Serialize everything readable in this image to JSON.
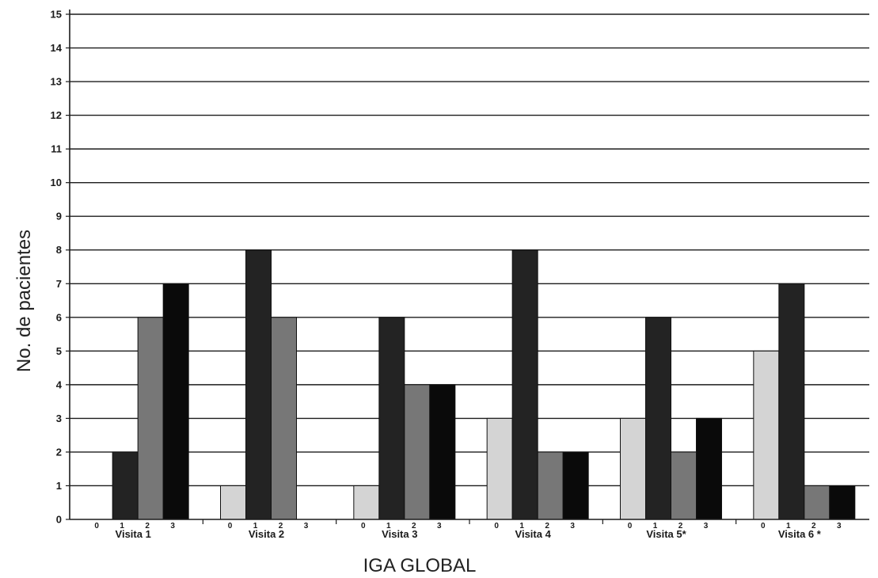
{
  "chart_data": {
    "type": "bar",
    "title": "",
    "xlabel": "IGA GLOBAL",
    "ylabel": "No. de pacientes",
    "ylim": [
      0,
      15
    ],
    "yticks": [
      0,
      1,
      2,
      3,
      4,
      5,
      6,
      7,
      8,
      9,
      10,
      11,
      12,
      13,
      14,
      15
    ],
    "grid": true,
    "legend": "none",
    "categories": [
      "Visita 1",
      "Visita 2",
      "Visita 3",
      "Visita 4",
      "Visita 5*",
      "Visita 6 *"
    ],
    "series": [
      {
        "sub_label": "0",
        "color": "#d4d4d4",
        "values": [
          0,
          1,
          1,
          3,
          3,
          5
        ]
      },
      {
        "sub_label": "1",
        "color": "#232323",
        "values": [
          2,
          8,
          6,
          8,
          6,
          7
        ]
      },
      {
        "sub_label": "2",
        "color": "#777777",
        "values": [
          6,
          6,
          4,
          2,
          2,
          1
        ]
      },
      {
        "sub_label": "3",
        "color": "#0a0a0a",
        "values": [
          7,
          0,
          4,
          2,
          3,
          1
        ]
      }
    ]
  }
}
